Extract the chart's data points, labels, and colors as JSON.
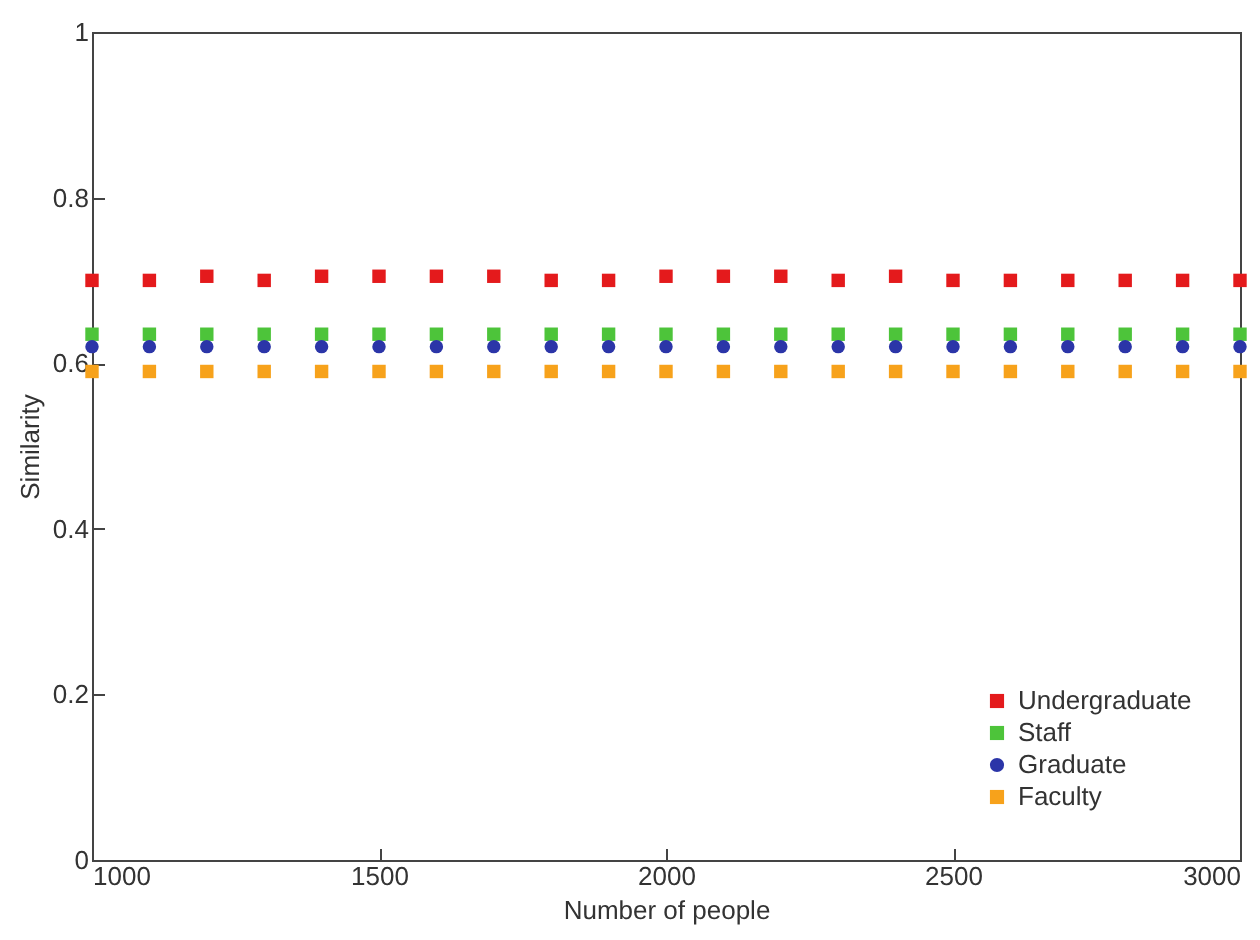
{
  "chart_data": {
    "type": "scatter",
    "xlabel": "Number of people",
    "ylabel": "Similarity",
    "x": [
      1000,
      1100,
      1200,
      1300,
      1400,
      1500,
      1600,
      1700,
      1800,
      1900,
      2000,
      2100,
      2200,
      2300,
      2400,
      2500,
      2600,
      2700,
      2800,
      2900,
      3000
    ],
    "series": [
      {
        "name": "Undergraduate",
        "color": "#e41a1c",
        "marker": "square",
        "values": [
          0.7,
          0.7,
          0.705,
          0.7,
          0.705,
          0.705,
          0.705,
          0.705,
          0.7,
          0.7,
          0.705,
          0.705,
          0.705,
          0.7,
          0.705,
          0.7,
          0.7,
          0.7,
          0.7,
          0.7,
          0.7
        ]
      },
      {
        "name": "Staff",
        "color": "#4dc43a",
        "marker": "square",
        "values": [
          0.635,
          0.635,
          0.635,
          0.635,
          0.635,
          0.635,
          0.635,
          0.635,
          0.635,
          0.635,
          0.635,
          0.635,
          0.635,
          0.635,
          0.635,
          0.635,
          0.635,
          0.635,
          0.635,
          0.635,
          0.635
        ]
      },
      {
        "name": "Graduate",
        "color": "#2b35a8",
        "marker": "circle",
        "values": [
          0.62,
          0.62,
          0.62,
          0.62,
          0.62,
          0.62,
          0.62,
          0.62,
          0.62,
          0.62,
          0.62,
          0.62,
          0.62,
          0.62,
          0.62,
          0.62,
          0.62,
          0.62,
          0.62,
          0.62,
          0.62
        ]
      },
      {
        "name": "Faculty",
        "color": "#f7a21b",
        "marker": "square",
        "values": [
          0.59,
          0.59,
          0.59,
          0.59,
          0.59,
          0.59,
          0.59,
          0.59,
          0.59,
          0.59,
          0.59,
          0.59,
          0.59,
          0.59,
          0.59,
          0.59,
          0.59,
          0.59,
          0.59,
          0.59,
          0.59
        ]
      }
    ],
    "xlim": [
      1000,
      3000
    ],
    "xticks": [
      1000,
      1500,
      2000,
      2500,
      3000
    ],
    "ylim": [
      0,
      1
    ],
    "yticks": [
      0,
      0.2,
      0.4,
      0.6,
      0.8,
      1
    ],
    "legend": "bottom right"
  }
}
